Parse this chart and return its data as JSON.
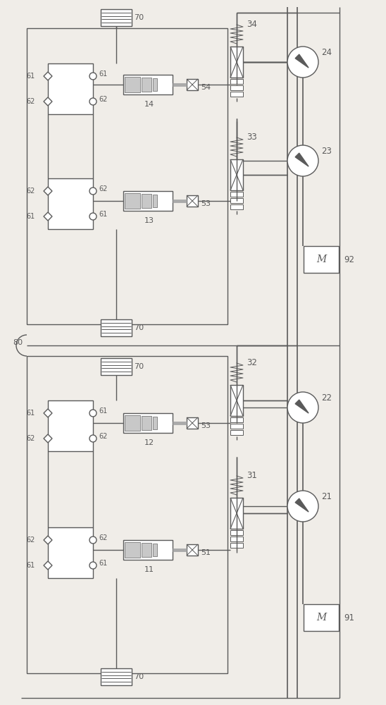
{
  "bg_color": "#f0ede8",
  "line_color": "#5a5a5a",
  "lw": 1.0,
  "fig_width": 5.48,
  "fig_height": 10.0,
  "dpi": 100
}
